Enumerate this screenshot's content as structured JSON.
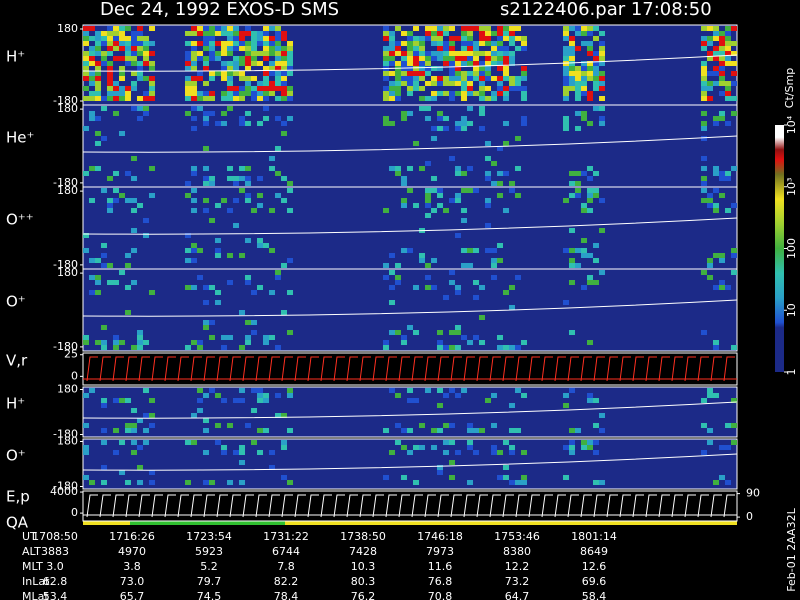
{
  "chart_data": {
    "type": "spectrogram",
    "title": "Dec 24, 1992   EXOS-D SMS",
    "subtitle": "s2122406.par  17:08:50",
    "panels": [
      {
        "label": "H⁺",
        "ylim": [
          -200,
          200
        ],
        "yticks": [
          -180,
          180
        ]
      },
      {
        "label": "He⁺",
        "ylim": [
          -200,
          200
        ],
        "yticks": [
          -180,
          180
        ]
      },
      {
        "label": "O⁺⁺",
        "ylim": [
          -200,
          200
        ],
        "yticks": [
          -180,
          180
        ]
      },
      {
        "label": "O⁺",
        "ylim": [
          -200,
          200
        ],
        "yticks": [
          -180,
          180
        ]
      },
      {
        "label": "V,r",
        "ylim": [
          -10,
          27
        ],
        "yticks": [
          0,
          25
        ]
      },
      {
        "label": "H⁺",
        "ylim": [
          -200,
          200
        ],
        "yticks": [
          -180,
          180
        ]
      },
      {
        "label": "O⁺",
        "ylim": [
          -200,
          200
        ],
        "yticks": [
          -180,
          180
        ]
      },
      {
        "label": "E,p",
        "sublabel": "QA",
        "ylim": [
          -1500,
          4200
        ],
        "yticks": [
          0,
          4000
        ],
        "y2lim": [
          -15,
          100
        ],
        "y2ticks": [
          0,
          90
        ]
      }
    ],
    "colorbar": {
      "label": "Ct/Smp",
      "log": true,
      "clim": [
        1,
        10000
      ],
      "ticks": [
        1,
        10,
        100,
        {
          "value": 1000,
          "label": "10³"
        },
        {
          "value": 10000,
          "label": "10⁴"
        }
      ]
    },
    "footer": {
      "rows": [
        {
          "name": "UT",
          "values": [
            "1708:50",
            "1716:26",
            "1723:54",
            "1731:22",
            "1738:50",
            "1746:18",
            "1753:46",
            "1801:14"
          ]
        },
        {
          "name": "ALT",
          "values": [
            "3883",
            "4970",
            "5923",
            "6744",
            "7428",
            "7973",
            "8380",
            "8649"
          ]
        },
        {
          "name": "MLT",
          "values": [
            "3.0",
            "3.8",
            "5.2",
            "7.8",
            "10.3",
            "11.6",
            "12.2",
            "12.6"
          ]
        },
        {
          "name": "InLat",
          "values": [
            "62.8",
            "73.0",
            "79.7",
            "82.2",
            "80.3",
            "76.8",
            "73.2",
            "69.6"
          ]
        },
        {
          "name": "MLat",
          "values": [
            "53.4",
            "65.7",
            "74.5",
            "78.4",
            "76.2",
            "70.8",
            "64.7",
            "58.4"
          ]
        }
      ],
      "note": "Feb-01 2AA32L"
    }
  }
}
